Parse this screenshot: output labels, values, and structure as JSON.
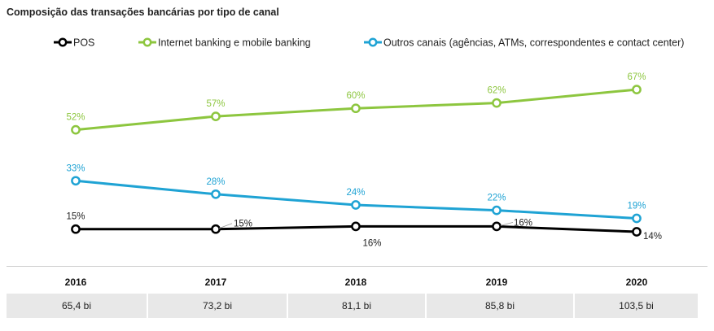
{
  "chart_data": {
    "type": "line",
    "title": "Composição das transações bancárias por tipo de canal",
    "x": [
      "2016",
      "2017",
      "2018",
      "2019",
      "2020"
    ],
    "ylim": [
      0,
      75
    ],
    "grid": false,
    "legend_position": "top",
    "series": [
      {
        "name": "POS",
        "color": "#000000",
        "values": [
          15,
          15,
          16,
          16,
          14
        ],
        "labels": [
          "15%",
          "15%",
          "16%",
          "16%",
          "14%"
        ]
      },
      {
        "name": "Internet banking e mobile banking",
        "color": "#8dc63f",
        "values": [
          52,
          57,
          60,
          62,
          67
        ],
        "labels": [
          "52%",
          "57%",
          "60%",
          "62%",
          "67%"
        ]
      },
      {
        "name": "Outros canais (agências, ATMs, correspondentes e contact center)",
        "color": "#1fa3d4",
        "values": [
          33,
          28,
          24,
          22,
          19
        ],
        "labels": [
          "33%",
          "28%",
          "24%",
          "22%",
          "19%"
        ]
      }
    ],
    "totals": [
      "65,4 bi",
      "73,2 bi",
      "81,1 bi",
      "85,8 bi",
      "103,5 bi"
    ]
  }
}
